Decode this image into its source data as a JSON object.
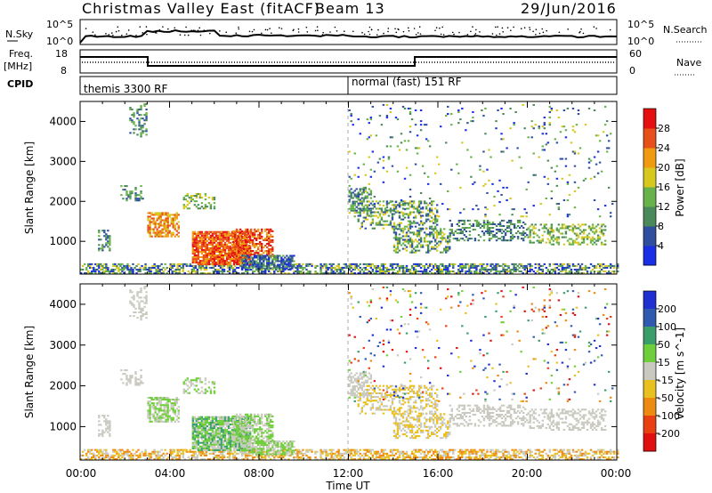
{
  "title": {
    "left": "Christmas Valley East (fitACF)",
    "center": "Beam 13",
    "right": "29/Jun/2016"
  },
  "nsky_panel": {
    "label": "N.Sky",
    "right_label": "N.Search",
    "ticks": [
      "10^5",
      "10^0"
    ]
  },
  "freq_panel": {
    "label_top": "Freq.",
    "label_bottom": "[MHz]",
    "left_ticks": [
      "18",
      "8"
    ],
    "right_ticks": [
      "60",
      "0"
    ],
    "right_label": "Nave"
  },
  "cpid": {
    "label": "CPID",
    "modes": [
      "themis 3300 RF",
      "normal (fast) 151 RF"
    ]
  },
  "chart_data": [
    {
      "type": "heatmap",
      "title": "",
      "ylabel": "Slant Range [km]",
      "yticks": [
        "1000",
        "2000",
        "3000",
        "4000"
      ],
      "ylim": [
        180,
        4500
      ],
      "colorbar_label": "Power [dB]",
      "colorbar_ticks": [
        "4",
        "8",
        "12",
        "16",
        "20",
        "24",
        "28"
      ],
      "colorbar_colors": [
        "#1a2ee6",
        "#2f4f9e",
        "#4a8a5a",
        "#67b24a",
        "#d6c81e",
        "#ef9a10",
        "#e8501a",
        "#e41010"
      ]
    },
    {
      "type": "heatmap",
      "title": "",
      "ylabel": "Slant Range [km]",
      "yticks": [
        "1000",
        "2000",
        "3000",
        "4000"
      ],
      "ylim": [
        180,
        4500
      ],
      "colorbar_label": "Velocity [m s^-1]",
      "colorbar_ticks": [
        "200",
        "100",
        "50",
        "15",
        "-15",
        "-50",
        "-100",
        "-200"
      ],
      "colorbar_colors": [
        "#1f2fd0",
        "#2f5ab0",
        "#3a9e6a",
        "#6fcf3a",
        "#c9c9c0",
        "#e8c020",
        "#ef8a10",
        "#e84010",
        "#e01010"
      ]
    }
  ],
  "x_axis": {
    "ticks": [
      "00:00",
      "04:00",
      "08:00",
      "12:00",
      "16:00",
      "20:00",
      "00:00"
    ],
    "label": "Time UT"
  }
}
